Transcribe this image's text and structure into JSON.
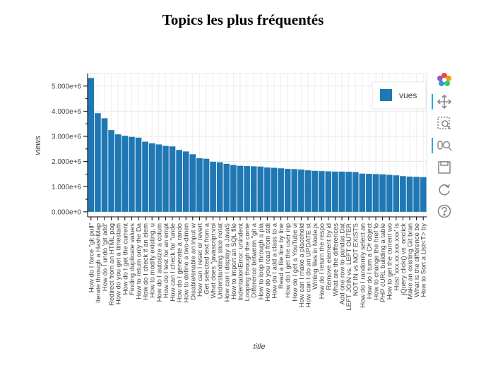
{
  "page": {
    "title": "Topics les plus fréquentés"
  },
  "toolbar": {
    "tools": [
      {
        "name": "bokeh-logo-icon"
      },
      {
        "name": "pan-icon",
        "active": true
      },
      {
        "name": "box-zoom-icon"
      },
      {
        "name": "wheel-zoom-icon",
        "active": true
      },
      {
        "name": "save-icon"
      },
      {
        "name": "reset-icon"
      },
      {
        "name": "help-icon"
      }
    ]
  },
  "chart_data": {
    "type": "bar",
    "xlabel": "title",
    "ylabel": "views",
    "ylim": [
      -200000,
      5500000
    ],
    "yticks": [
      0,
      1000000,
      2000000,
      3000000,
      4000000,
      5000000
    ],
    "ytick_labels": [
      "0.000e+0",
      "1.000e+6",
      "2.000e+6",
      "3.000e+6",
      "4.000e+6",
      "5.000e+6"
    ],
    "grid": true,
    "legend": {
      "position": "top-right",
      "entries": [
        "vues"
      ]
    },
    "bar_color": "#1f77b4",
    "categories": [
      "How do I force \"git pull\"",
      "Iterate through a HashMap",
      "How do I undo 'git add'",
      "Redirect from an HTML pag",
      "How do you get a timestam",
      "How do I get the current",
      "Finding duplicate values",
      "How to return only the Da",
      "How do I check if an elem",
      "How to modify existing, u",
      "How do I autosize a colum",
      "How do I test for an empt",
      "How can I check for \"unde",
      "How do I generate a rando",
      "How to define a two-dimen",
      "Disable/enable an input w",
      "How can I reset or revert",
      "Get selected text from a",
      "What does \"javascript:voi",
      "Understanding slice notat",
      "How can I display a JavaS",
      "How to import an SQL file",
      "IndentationError: unindent",
      "Looping through the conte",
      "Difference between \"git a",
      "How to loop through a pla",
      "How do you read from stdi",
      "How do I add a class to a",
      "Read a file line by line",
      "How do I get the user inp",
      "How do I get a YouTube vi",
      "How can I make a placehold",
      "How can I do an UPDATE st",
      "Writing files in Node.js",
      "How do I return the respo",
      "Remove element by id",
      "What are the differences",
      "Add one row to pandas.Dat",
      "LEFT JOIN vs. LEFT OUTER",
      "NOT IN vs NOT EXISTS",
      "How do I randomly select an",
      "How do I turn a C# object",
      "How to change the href fo",
      "PHP cURL building a table",
      "How to get the current wo",
      "Host 'xxx.xx.xxx.xxx' is",
      "jQuery click() vs. onclick",
      "Make an existing Git bran",
      "What is the difference be",
      "How to Sort a List<T> by"
    ],
    "series": [
      {
        "name": "vues",
        "values": [
          5320000,
          3920000,
          3720000,
          3250000,
          3080000,
          3020000,
          2980000,
          2950000,
          2790000,
          2720000,
          2680000,
          2620000,
          2600000,
          2460000,
          2400000,
          2290000,
          2130000,
          2110000,
          1990000,
          1970000,
          1910000,
          1860000,
          1830000,
          1820000,
          1810000,
          1800000,
          1760000,
          1750000,
          1730000,
          1710000,
          1700000,
          1680000,
          1650000,
          1630000,
          1620000,
          1610000,
          1600000,
          1600000,
          1590000,
          1580000,
          1520000,
          1510000,
          1500000,
          1490000,
          1470000,
          1450000,
          1420000,
          1400000,
          1390000,
          1380000
        ]
      }
    ]
  }
}
